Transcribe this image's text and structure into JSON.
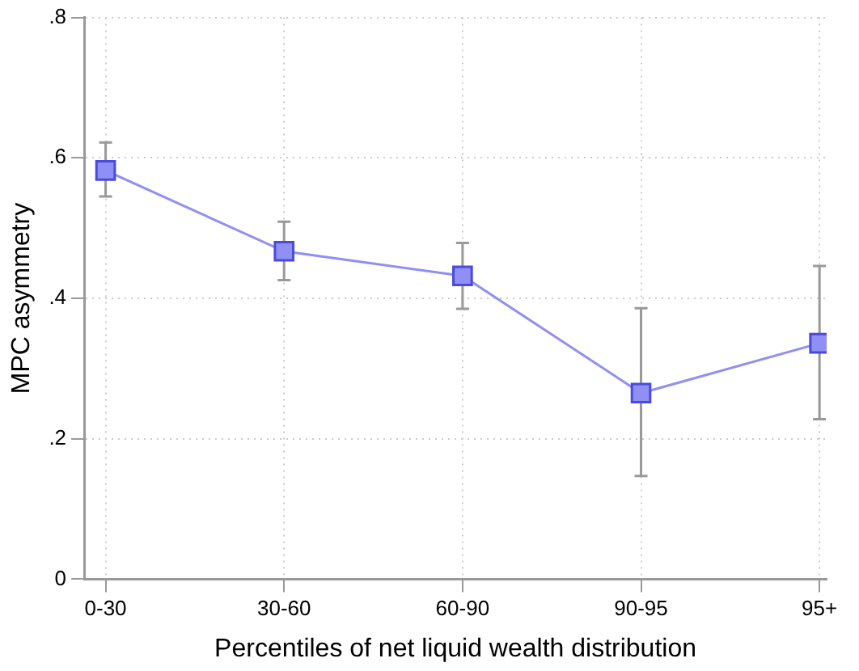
{
  "chart_data": {
    "type": "line",
    "xlabel": "Percentiles of net liquid wealth distribution",
    "ylabel": "MPC asymmetry",
    "categories": [
      "0-30",
      "30-60",
      "60-90",
      "90-95",
      "95+"
    ],
    "series": [
      {
        "color": "#8f8ff5",
        "values": [
          0.582,
          0.467,
          0.432,
          0.265,
          0.336
        ],
        "errors": [
          [
            0.545,
            0.622
          ],
          [
            0.426,
            0.509
          ],
          [
            0.385,
            0.479
          ],
          [
            0.147,
            0.386
          ],
          [
            0.228,
            0.446
          ]
        ]
      }
    ],
    "ylim": [
      0,
      0.8
    ],
    "yticks": [
      0,
      {
        "value": 0.2,
        "label": ".2"
      },
      {
        "value": 0.4,
        "label": ".4"
      },
      {
        "value": 0.6,
        "label": ".6"
      },
      {
        "value": 0.8,
        "label": ".8"
      }
    ],
    "grid": true,
    "legend": false,
    "marker": "square",
    "line_style": "solid"
  }
}
